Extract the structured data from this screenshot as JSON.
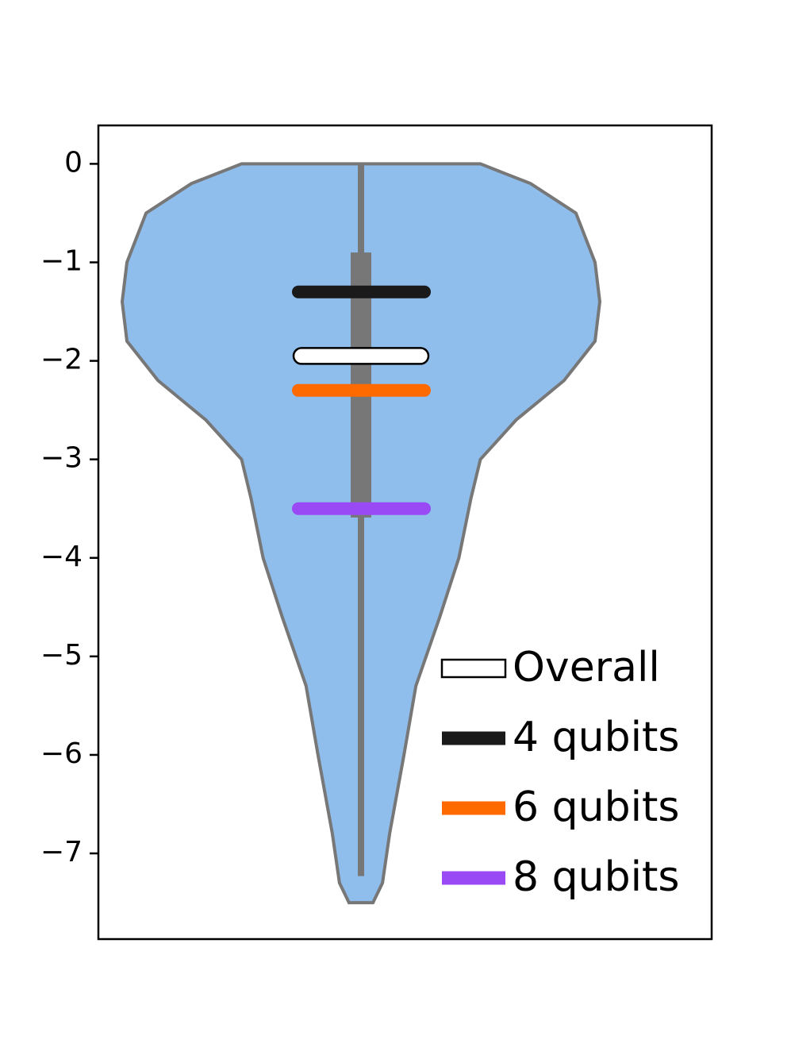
{
  "chart_data": {
    "type": "violin",
    "ylim": [
      -7.87,
      0.39
    ],
    "yticks": [
      0,
      {
        "value": -1,
        "label": "−1"
      },
      {
        "value": -2,
        "label": "−2"
      },
      {
        "value": -3,
        "label": "−3"
      },
      {
        "value": -4,
        "label": "−4"
      },
      {
        "value": -5,
        "label": "−5"
      },
      {
        "value": -6,
        "label": "−6"
      },
      {
        "value": -7,
        "label": "−7"
      }
    ],
    "violin": {
      "color": "#8fbdec",
      "edgecolor": "#777777",
      "y": [
        0,
        -0.2,
        -0.5,
        -1.0,
        -1.4,
        -1.8,
        -2.2,
        -2.6,
        -3.0,
        -3.4,
        -4.0,
        -4.6,
        -5.3,
        -6.0,
        -6.8,
        -7.3,
        -7.5
      ],
      "density": [
        0.5,
        0.71,
        0.9,
        0.98,
        1.0,
        0.98,
        0.85,
        0.65,
        0.5,
        0.46,
        0.41,
        0.33,
        0.23,
        0.18,
        0.12,
        0.09,
        0.05
      ]
    },
    "whisker": [
      0,
      -7.23
    ],
    "box": [
      -0.9,
      -3.59
    ],
    "series": [
      {
        "name": "Overall",
        "color": "#ffffff",
        "values": [
          -1.95
        ]
      },
      {
        "name": "4 qubits",
        "color": "#1a1a1a",
        "values": [
          -1.3
        ]
      },
      {
        "name": "6 qubits",
        "color": "#ff6a00",
        "values": [
          -2.3
        ]
      },
      {
        "name": "8 qubits",
        "color": "#9a4af5",
        "values": [
          -3.5
        ]
      }
    ],
    "legend": "lower right"
  }
}
